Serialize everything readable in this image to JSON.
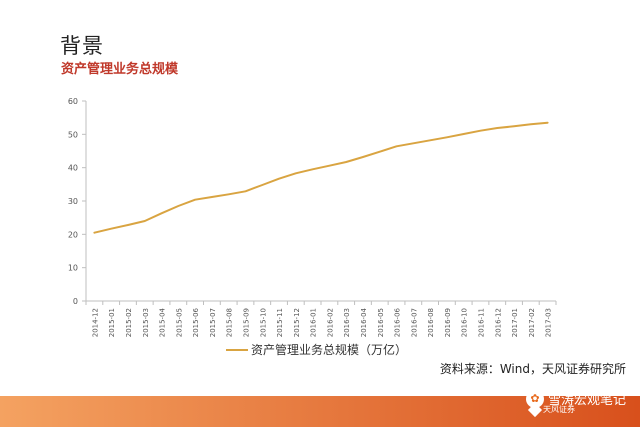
{
  "page": {
    "title": "背景",
    "subtitle": "资产管理业务总规模",
    "source": "资料来源：Wind，天风证券研究所",
    "watermark": "雪涛宏观笔记",
    "logo_text": "天风证券"
  },
  "colors": {
    "line": "#d9a441",
    "subtitle": "#c0392b",
    "footer_start": "#f4a261",
    "footer_end": "#d8501c"
  },
  "chart_data": {
    "type": "line",
    "title": "",
    "xlabel": "",
    "ylabel": "",
    "ylim": [
      0,
      60
    ],
    "yticks": [
      0,
      10,
      20,
      30,
      40,
      50,
      60
    ],
    "grid": false,
    "legend_position": "bottom",
    "categories": [
      "2014-12",
      "2015-01",
      "2015-02",
      "2015-03",
      "2015-04",
      "2015-05",
      "2015-06",
      "2015-07",
      "2015-08",
      "2015-09",
      "2015-10",
      "2015-11",
      "2015-12",
      "2016-01",
      "2016-02",
      "2016-03",
      "2016-04",
      "2016-05",
      "2016-06",
      "2016-07",
      "2016-08",
      "2016-09",
      "2016-10",
      "2016-11",
      "2016-12",
      "2017-01",
      "2017-02",
      "2017-03"
    ],
    "series": [
      {
        "name": "资产管理业务总规模（万亿）",
        "values": [
          20.5,
          21.7,
          22.8,
          24.0,
          26.3,
          28.5,
          30.4,
          31.2,
          32.0,
          32.9,
          34.8,
          36.7,
          38.3,
          39.5,
          40.6,
          41.7,
          43.2,
          44.8,
          46.4,
          47.3,
          48.2,
          49.1,
          50.1,
          51.1,
          51.9,
          52.4,
          53.0,
          53.5
        ]
      }
    ]
  }
}
